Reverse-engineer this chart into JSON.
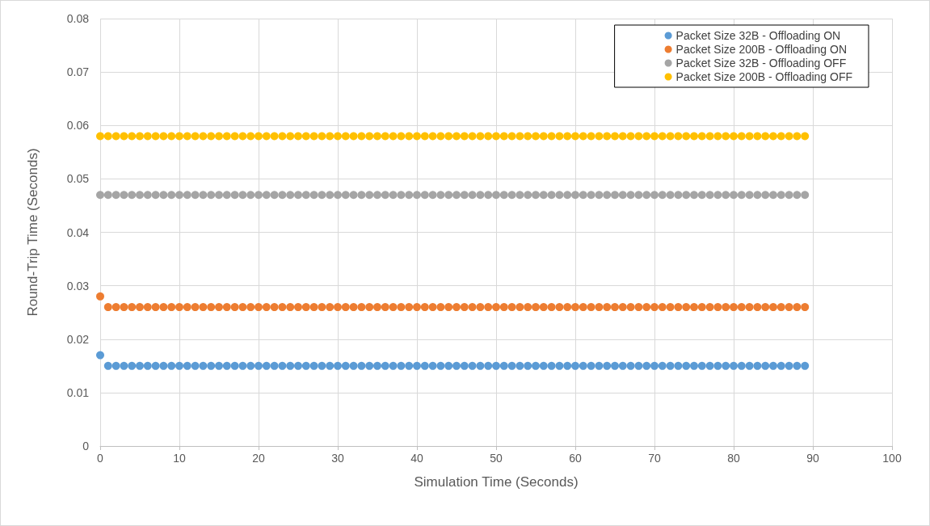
{
  "chart_data": {
    "type": "scatter",
    "xlabel": "Simulation Time (Seconds)",
    "ylabel": "Round-Trip Time (Seconds)",
    "x": [
      0,
      1,
      2,
      3,
      4,
      5,
      6,
      7,
      8,
      9,
      10,
      11,
      12,
      13,
      14,
      15,
      16,
      17,
      18,
      19,
      20,
      21,
      22,
      23,
      24,
      25,
      26,
      27,
      28,
      29,
      30,
      31,
      32,
      33,
      34,
      35,
      36,
      37,
      38,
      39,
      40,
      41,
      42,
      43,
      44,
      45,
      46,
      47,
      48,
      49,
      50,
      51,
      52,
      53,
      54,
      55,
      56,
      57,
      58,
      59,
      60,
      61,
      62,
      63,
      64,
      65,
      66,
      67,
      68,
      69,
      70,
      71,
      72,
      73,
      74,
      75,
      76,
      77,
      78,
      79,
      80,
      81,
      82,
      83,
      84,
      85,
      86,
      87,
      88,
      89
    ],
    "series": [
      {
        "name": "Packet Size 32B - Offloading ON",
        "color": "#5b9bd5",
        "values": [
          0.017,
          0.015,
          0.015,
          0.015,
          0.015,
          0.015,
          0.015,
          0.015,
          0.015,
          0.015,
          0.015,
          0.015,
          0.015,
          0.015,
          0.015,
          0.015,
          0.015,
          0.015,
          0.015,
          0.015,
          0.015,
          0.015,
          0.015,
          0.015,
          0.015,
          0.015,
          0.015,
          0.015,
          0.015,
          0.015,
          0.015,
          0.015,
          0.015,
          0.015,
          0.015,
          0.015,
          0.015,
          0.015,
          0.015,
          0.015,
          0.015,
          0.015,
          0.015,
          0.015,
          0.015,
          0.015,
          0.015,
          0.015,
          0.015,
          0.015,
          0.015,
          0.015,
          0.015,
          0.015,
          0.015,
          0.015,
          0.015,
          0.015,
          0.015,
          0.015,
          0.015,
          0.015,
          0.015,
          0.015,
          0.015,
          0.015,
          0.015,
          0.015,
          0.015,
          0.015,
          0.015,
          0.015,
          0.015,
          0.015,
          0.015,
          0.015,
          0.015,
          0.015,
          0.015,
          0.015,
          0.015,
          0.015,
          0.015,
          0.015,
          0.015,
          0.015,
          0.015,
          0.015,
          0.015,
          0.015
        ]
      },
      {
        "name": "Packet Size 200B - Offloading ON",
        "color": "#ed7d31",
        "values": [
          0.028,
          0.026,
          0.026,
          0.026,
          0.026,
          0.026,
          0.026,
          0.026,
          0.026,
          0.026,
          0.026,
          0.026,
          0.026,
          0.026,
          0.026,
          0.026,
          0.026,
          0.026,
          0.026,
          0.026,
          0.026,
          0.026,
          0.026,
          0.026,
          0.026,
          0.026,
          0.026,
          0.026,
          0.026,
          0.026,
          0.026,
          0.026,
          0.026,
          0.026,
          0.026,
          0.026,
          0.026,
          0.026,
          0.026,
          0.026,
          0.026,
          0.026,
          0.026,
          0.026,
          0.026,
          0.026,
          0.026,
          0.026,
          0.026,
          0.026,
          0.026,
          0.026,
          0.026,
          0.026,
          0.026,
          0.026,
          0.026,
          0.026,
          0.026,
          0.026,
          0.026,
          0.026,
          0.026,
          0.026,
          0.026,
          0.026,
          0.026,
          0.026,
          0.026,
          0.026,
          0.026,
          0.026,
          0.026,
          0.026,
          0.026,
          0.026,
          0.026,
          0.026,
          0.026,
          0.026,
          0.026,
          0.026,
          0.026,
          0.026,
          0.026,
          0.026,
          0.026,
          0.026,
          0.026,
          0.026
        ]
      },
      {
        "name": "Packet Size 32B - Offloading OFF",
        "color": "#a5a5a5",
        "values": [
          0.047,
          0.047,
          0.047,
          0.047,
          0.047,
          0.047,
          0.047,
          0.047,
          0.047,
          0.047,
          0.047,
          0.047,
          0.047,
          0.047,
          0.047,
          0.047,
          0.047,
          0.047,
          0.047,
          0.047,
          0.047,
          0.047,
          0.047,
          0.047,
          0.047,
          0.047,
          0.047,
          0.047,
          0.047,
          0.047,
          0.047,
          0.047,
          0.047,
          0.047,
          0.047,
          0.047,
          0.047,
          0.047,
          0.047,
          0.047,
          0.047,
          0.047,
          0.047,
          0.047,
          0.047,
          0.047,
          0.047,
          0.047,
          0.047,
          0.047,
          0.047,
          0.047,
          0.047,
          0.047,
          0.047,
          0.047,
          0.047,
          0.047,
          0.047,
          0.047,
          0.047,
          0.047,
          0.047,
          0.047,
          0.047,
          0.047,
          0.047,
          0.047,
          0.047,
          0.047,
          0.047,
          0.047,
          0.047,
          0.047,
          0.047,
          0.047,
          0.047,
          0.047,
          0.047,
          0.047,
          0.047,
          0.047,
          0.047,
          0.047,
          0.047,
          0.047,
          0.047,
          0.047,
          0.047,
          0.047
        ]
      },
      {
        "name": "Packet Size 200B - Offloading OFF",
        "color": "#ffc000",
        "values": [
          0.058,
          0.058,
          0.058,
          0.058,
          0.058,
          0.058,
          0.058,
          0.058,
          0.058,
          0.058,
          0.058,
          0.058,
          0.058,
          0.058,
          0.058,
          0.058,
          0.058,
          0.058,
          0.058,
          0.058,
          0.058,
          0.058,
          0.058,
          0.058,
          0.058,
          0.058,
          0.058,
          0.058,
          0.058,
          0.058,
          0.058,
          0.058,
          0.058,
          0.058,
          0.058,
          0.058,
          0.058,
          0.058,
          0.058,
          0.058,
          0.058,
          0.058,
          0.058,
          0.058,
          0.058,
          0.058,
          0.058,
          0.058,
          0.058,
          0.058,
          0.058,
          0.058,
          0.058,
          0.058,
          0.058,
          0.058,
          0.058,
          0.058,
          0.058,
          0.058,
          0.058,
          0.058,
          0.058,
          0.058,
          0.058,
          0.058,
          0.058,
          0.058,
          0.058,
          0.058,
          0.058,
          0.058,
          0.058,
          0.058,
          0.058,
          0.058,
          0.058,
          0.058,
          0.058,
          0.058,
          0.058,
          0.058,
          0.058,
          0.058,
          0.058,
          0.058,
          0.058,
          0.058,
          0.058,
          0.058
        ]
      }
    ],
    "xlim": [
      0,
      100
    ],
    "xticks": [
      0,
      10,
      20,
      30,
      40,
      50,
      60,
      70,
      80,
      90,
      100
    ],
    "ylim": [
      0,
      0.08
    ],
    "yticks": [
      0,
      0.01,
      0.02,
      0.03,
      0.04,
      0.05,
      0.06,
      0.07,
      0.08
    ],
    "grid": true,
    "legend": "top right",
    "marker": "circle"
  }
}
